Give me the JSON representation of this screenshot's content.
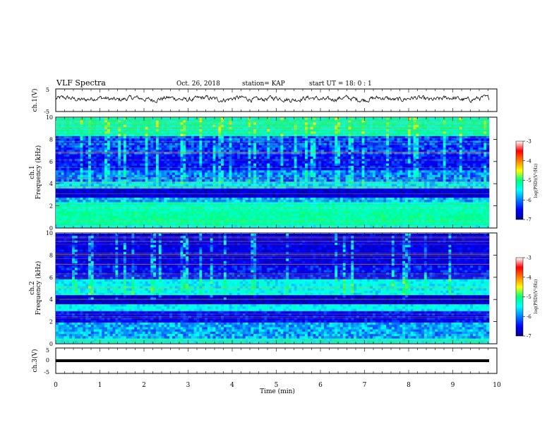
{
  "header": {
    "title": "VLF Spectra",
    "date": "Oct. 26, 2018",
    "station": "station= KAP",
    "start": "start  UT =   18: 0  : 1"
  },
  "chart_data": [
    {
      "type": "line",
      "panel": "ch1-waveform",
      "ylabel": "ch.1(V)",
      "ylim": [
        -5,
        5
      ],
      "yticks": [
        5,
        -5
      ],
      "xlim": [
        0,
        10
      ],
      "description_values": "noisy waveform, amplitude roughly -2 to 3 V"
    },
    {
      "type": "heatmap",
      "panel": "ch1-spectrogram",
      "ylabel_line1": "ch.1",
      "ylabel_line2": "Frequency (kHz)",
      "ylim": [
        0,
        10
      ],
      "yticks": [
        "0",
        "2",
        "4",
        "6",
        "8",
        "10"
      ],
      "xlim": [
        0,
        9.85
      ],
      "colorbar": {
        "label": "log(PSD)(V²/Hz)",
        "range": [
          -7,
          -3
        ],
        "ticks": [
          "-3",
          "-4",
          "-5",
          "-6",
          "-7"
        ]
      }
    },
    {
      "type": "heatmap",
      "panel": "ch2-spectrogram",
      "ylabel_line1": "ch.2",
      "ylabel_line2": "Frequency (kHz)",
      "ylim": [
        0,
        10
      ],
      "yticks": [
        "0",
        "2",
        "4",
        "6",
        "8",
        "10"
      ],
      "xlim": [
        0,
        9.85
      ],
      "colorbar": {
        "label": "log(PSD)(V²/Hz)",
        "range": [
          -7,
          -3
        ],
        "ticks": [
          "-3",
          "-4",
          "-5",
          "-6",
          "-7"
        ]
      }
    },
    {
      "type": "line",
      "panel": "ch3-waveform",
      "ylabel": "ch.3(V)",
      "ylim": [
        -5,
        5
      ],
      "yticks": [
        "5",
        "0",
        "-5"
      ],
      "values_constant": -0.5
    }
  ],
  "xaxis": {
    "label": "Time (min)",
    "ticks": [
      "0",
      "1",
      "2",
      "3",
      "4",
      "5",
      "6",
      "7",
      "8",
      "9",
      "10"
    ],
    "range": [
      0,
      10
    ]
  }
}
